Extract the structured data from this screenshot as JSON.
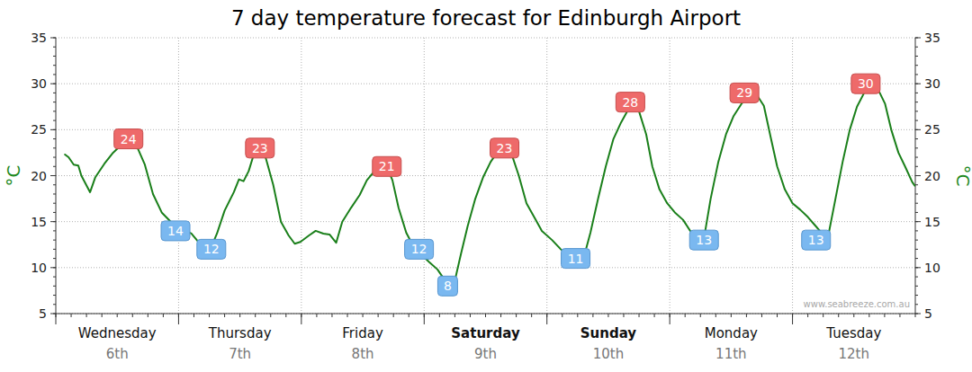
{
  "chart_data": {
    "type": "line",
    "title": "7 day temperature forecast for Edinburgh Airport",
    "ylabel": "°C",
    "y2label": "°C",
    "credit": "www.seabreeze.com.au",
    "xlim": [
      0,
      168
    ],
    "ylim": [
      5,
      35
    ],
    "yticks": [
      5,
      10,
      15,
      20,
      25,
      30,
      35
    ],
    "y2lim": [
      5,
      35
    ],
    "y2ticks": [
      5,
      10,
      15,
      20,
      25,
      30,
      35
    ],
    "grid": true,
    "days": [
      {
        "start": 0,
        "end": 24,
        "label": "Wednesday",
        "date": "6th",
        "weekend": false
      },
      {
        "start": 24,
        "end": 48,
        "label": "Thursday",
        "date": "7th",
        "weekend": false
      },
      {
        "start": 48,
        "end": 72,
        "label": "Friday",
        "date": "8th",
        "weekend": false
      },
      {
        "start": 72,
        "end": 96,
        "label": "Saturday",
        "date": "9th",
        "weekend": true
      },
      {
        "start": 96,
        "end": 120,
        "label": "Sunday",
        "date": "10th",
        "weekend": true
      },
      {
        "start": 120,
        "end": 144,
        "label": "Monday",
        "date": "11th",
        "weekend": false
      },
      {
        "start": 144,
        "end": 168,
        "label": "Tuesday",
        "date": "12th",
        "weekend": false
      }
    ],
    "series": [
      {
        "color": "#1a7f1a",
        "x": [
          1.8,
          2.5,
          3.5,
          4.4,
          5,
          6.7,
          7.7,
          9.5,
          11.2,
          12.7,
          14.2,
          16,
          17.4,
          19,
          20.7,
          22.8,
          24.8,
          26.5,
          28,
          29,
          30,
          31.5,
          33,
          34.8,
          35.8,
          36.7,
          37.7,
          38.8,
          40,
          41,
          42.5,
          44,
          45.5,
          46.7,
          47.8,
          49.5,
          50.8,
          52.3,
          53.5,
          54.8,
          56,
          57.7,
          59.4,
          60.8,
          62,
          63.5,
          64.7,
          65.8,
          67,
          68.5,
          70,
          71.5,
          73,
          74.6,
          75.6,
          77,
          78,
          79.2,
          80.5,
          82,
          83.5,
          85,
          86.6,
          87.8,
          89,
          90.5,
          92,
          93.5,
          95,
          97,
          98.7,
          100,
          101.5,
          103,
          104.5,
          106,
          107.5,
          109,
          110.5,
          112,
          113,
          114,
          115.4,
          116.6,
          118,
          119.5,
          121,
          122.6,
          124,
          125.5,
          126.7,
          128,
          129.5,
          131,
          132.5,
          134,
          135.5,
          137,
          138.4,
          139.8,
          141,
          142.5,
          144,
          145.5,
          147,
          148.4,
          149.8,
          151,
          152.4,
          153.8,
          155.2,
          156.6,
          158,
          159.3,
          160.8,
          162.1,
          163.3,
          164.7,
          166,
          167.4,
          167.9
        ],
        "values": [
          22.3,
          22.0,
          21.2,
          21.1,
          20.0,
          18.2,
          19.8,
          21.3,
          22.5,
          23.3,
          23.5,
          23.0,
          21.2,
          18.0,
          16.0,
          14.8,
          14.2,
          13.7,
          12.7,
          11.8,
          11.7,
          13.7,
          16.2,
          18.2,
          19.6,
          19.4,
          20.5,
          22.5,
          22.8,
          22.0,
          19.0,
          15.0,
          13.5,
          12.6,
          12.8,
          13.5,
          14.0,
          13.7,
          13.6,
          12.7,
          15.0,
          16.5,
          17.9,
          19.5,
          20.3,
          21.0,
          21.0,
          19.5,
          16.5,
          13.8,
          12.2,
          11.4,
          10.6,
          9.8,
          9.0,
          8.4,
          8.6,
          11.5,
          14.5,
          17.5,
          19.8,
          21.5,
          22.8,
          23.1,
          22.5,
          20.0,
          17.0,
          15.5,
          14.0,
          13.0,
          12.0,
          11.3,
          10.8,
          10.7,
          13.8,
          17.5,
          21.0,
          24.0,
          25.8,
          27.3,
          27.7,
          27.0,
          24.5,
          21.0,
          18.5,
          17.0,
          16.0,
          15.2,
          14.0,
          13.3,
          13.2,
          17.5,
          21.5,
          24.5,
          26.5,
          27.8,
          28.7,
          28.8,
          27.6,
          24.0,
          21.0,
          18.5,
          17.0,
          16.3,
          15.5,
          14.6,
          13.7,
          13.5,
          17.5,
          21.5,
          25.0,
          27.5,
          29.0,
          29.7,
          29.3,
          27.8,
          25.0,
          22.5,
          21.0,
          19.3,
          18.9
        ]
      }
    ],
    "annotations": [
      {
        "x": 14.2,
        "value": 24,
        "type": "max"
      },
      {
        "x": 23.4,
        "value": 14,
        "type": "min"
      },
      {
        "x": 30.4,
        "value": 12,
        "type": "min"
      },
      {
        "x": 39.9,
        "value": 23,
        "type": "max"
      },
      {
        "x": 64.7,
        "value": 21,
        "type": "max"
      },
      {
        "x": 71,
        "value": 12,
        "type": "min"
      },
      {
        "x": 76.6,
        "value": 8,
        "type": "min"
      },
      {
        "x": 87.7,
        "value": 23,
        "type": "max"
      },
      {
        "x": 101.6,
        "value": 11,
        "type": "min"
      },
      {
        "x": 112.3,
        "value": 28,
        "type": "max"
      },
      {
        "x": 126.7,
        "value": 13,
        "type": "min"
      },
      {
        "x": 134.6,
        "value": 29,
        "type": "max"
      },
      {
        "x": 148.6,
        "value": 13,
        "type": "min"
      },
      {
        "x": 158.3,
        "value": 30,
        "type": "max"
      }
    ]
  }
}
